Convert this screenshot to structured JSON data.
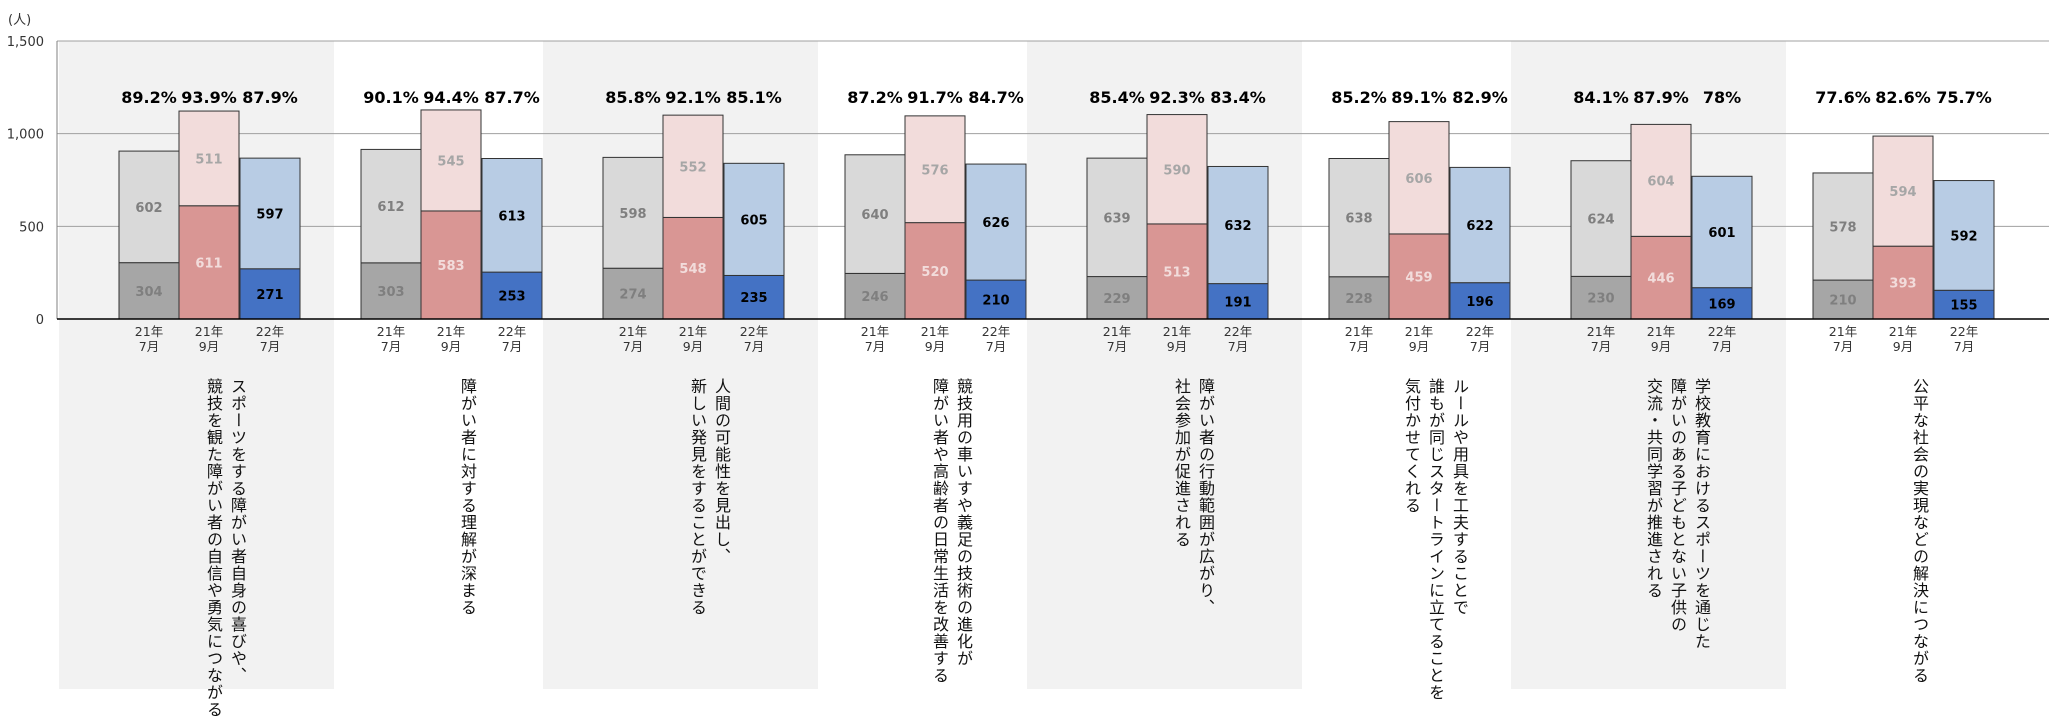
{
  "chart_data": {
    "type": "bar",
    "ylabel": "(人)",
    "ylim": [
      0,
      1500
    ],
    "yticks": [
      "0",
      "500",
      "1,000",
      "1,500"
    ],
    "grid": true,
    "period_labels": [
      "21年\n7月",
      "21年\n9月",
      "22年\n7月"
    ],
    "colors": {
      "p0_bottom": "#a6a6a6",
      "p0_top": "#d9d9d9",
      "p1_bottom": "#d99694",
      "p1_top": "#f2dcdb",
      "p2_bottom": "#4472c4",
      "p2_top": "#b8cce4",
      "band": "#f2f2f2"
    },
    "categories": [
      "スポーツをする障がい者自身の喜びや、\n競技を観た障がい者の自信や勇気につながる",
      "障がい者に対する理解が深まる",
      "人間の可能性を見出し、\n新しい発見をすることができる",
      "競技用の車いすや義足の技術の進化が\n障がい者や高齢者の日常生活を改善する",
      "障がい者の行動範囲が広がり、\n社会参加が促進される",
      "ルールや用具を工夫することで\n誰もが同じスタートラインに立てることを\n気付かせてくれる",
      "学校教育におけるスポーツを通じた\n障がいのある子どもとない子供の\n交流・共同学習が推進される",
      "公平な社会の実現などの解決につながる"
    ],
    "groups": [
      {
        "bars": [
          {
            "bottom": 304,
            "top": 602,
            "pct": "89.2%"
          },
          {
            "bottom": 611,
            "top": 511,
            "pct": "93.9%"
          },
          {
            "bottom": 271,
            "top": 597,
            "pct": "87.9%"
          }
        ]
      },
      {
        "bars": [
          {
            "bottom": 303,
            "top": 612,
            "pct": "90.1%"
          },
          {
            "bottom": 583,
            "top": 545,
            "pct": "94.4%"
          },
          {
            "bottom": 253,
            "top": 613,
            "pct": "87.7%"
          }
        ]
      },
      {
        "bars": [
          {
            "bottom": 274,
            "top": 598,
            "pct": "85.8%"
          },
          {
            "bottom": 548,
            "top": 552,
            "pct": "92.1%"
          },
          {
            "bottom": 235,
            "top": 605,
            "pct": "85.1%"
          }
        ]
      },
      {
        "bars": [
          {
            "bottom": 246,
            "top": 640,
            "pct": "87.2%"
          },
          {
            "bottom": 520,
            "top": 576,
            "pct": "91.7%"
          },
          {
            "bottom": 210,
            "top": 626,
            "pct": "84.7%"
          }
        ]
      },
      {
        "bars": [
          {
            "bottom": 229,
            "top": 639,
            "pct": "85.4%"
          },
          {
            "bottom": 513,
            "top": 590,
            "pct": "92.3%"
          },
          {
            "bottom": 191,
            "top": 632,
            "pct": "83.4%"
          }
        ]
      },
      {
        "bars": [
          {
            "bottom": 228,
            "top": 638,
            "pct": "85.2%"
          },
          {
            "bottom": 459,
            "top": 606,
            "pct": "89.1%"
          },
          {
            "bottom": 196,
            "top": 622,
            "pct": "82.9%"
          }
        ]
      },
      {
        "bars": [
          {
            "bottom": 230,
            "top": 624,
            "pct": "84.1%"
          },
          {
            "bottom": 446,
            "top": 604,
            "pct": "87.9%"
          },
          {
            "bottom": 169,
            "top": 601,
            "pct": "78%"
          }
        ]
      },
      {
        "bars": [
          {
            "bottom": 210,
            "top": 578,
            "pct": "77.6%"
          },
          {
            "bottom": 393,
            "top": 594,
            "pct": "82.6%"
          },
          {
            "bottom": 155,
            "top": 592,
            "pct": "75.7%"
          }
        ]
      }
    ]
  }
}
